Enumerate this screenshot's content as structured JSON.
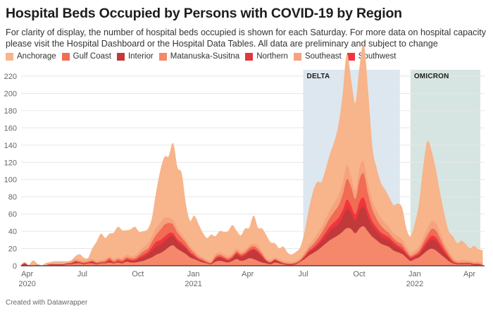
{
  "title": "Hospital Beds Occupied by Persons with COVID-19 by Region",
  "description": "For clarity of display, the number of hospital beds occupied is shown for each Saturday. For more data on hospital capacity please visit the Hospital Dashboard or the Hospital Data Tables. All data are preliminary and subject to change",
  "footer": "Created with Datawrapper",
  "chart_data": {
    "type": "area",
    "stacked": true,
    "title": "Hospital Beds Occupied by Persons with COVID-19 by Region",
    "xlabel": "",
    "ylabel": "",
    "ylim": [
      0,
      230
    ],
    "yticks": [
      0,
      20,
      40,
      60,
      80,
      100,
      120,
      140,
      160,
      180,
      200,
      220
    ],
    "grid": true,
    "legend": "top-left",
    "x_start": "2020-03-21",
    "x_interval": "weekly (Saturday)",
    "xticks": [
      {
        "label": "Apr",
        "sub": "2020",
        "week": 1.6
      },
      {
        "label": "Jul",
        "sub": "",
        "week": 14.6
      },
      {
        "label": "Oct",
        "sub": "",
        "week": 27.7
      },
      {
        "label": "Jan",
        "sub": "2021",
        "week": 40.8
      },
      {
        "label": "Apr",
        "sub": "",
        "week": 53.6
      },
      {
        "label": "Jul",
        "sub": "",
        "week": 66.7
      },
      {
        "label": "Oct",
        "sub": "",
        "week": 79.9
      },
      {
        "label": "Jan",
        "sub": "2022",
        "week": 93.0
      },
      {
        "label": "Apr",
        "sub": "",
        "week": 105.9
      }
    ],
    "annotations": [
      {
        "label": "DELTA",
        "from_week": 66.7,
        "to_week": 89.5,
        "color": "#dde7ef"
      },
      {
        "label": "OMICRON",
        "from_week": 92.0,
        "to_week": 108.9,
        "color": "#d6e5e1"
      }
    ],
    "series": [
      {
        "name": "Matanuska-Susitna",
        "color": "#f5876a",
        "values": [
          0,
          1,
          0,
          0,
          1,
          0,
          1,
          1,
          1,
          1,
          1,
          2,
          2,
          3,
          3,
          2,
          3,
          3,
          2,
          3,
          3,
          4,
          3,
          4,
          3,
          5,
          4,
          4,
          5,
          6,
          8,
          10,
          13,
          15,
          18,
          22,
          24,
          20,
          17,
          14,
          10,
          8,
          6,
          4,
          3,
          2,
          5,
          6,
          5,
          4,
          6,
          8,
          6,
          7,
          9,
          8,
          6,
          4,
          3,
          2,
          4,
          3,
          2,
          1,
          1,
          2,
          5,
          8,
          12,
          15,
          18,
          22,
          26,
          30,
          33,
          36,
          40,
          44,
          43,
          38,
          44,
          46,
          40,
          34,
          30,
          26,
          24,
          22,
          18,
          16,
          14,
          10,
          6,
          8,
          10,
          14,
          18,
          20,
          18,
          14,
          10,
          6,
          3,
          2,
          2,
          2,
          2,
          1,
          1,
          1
        ]
      },
      {
        "name": "Interior",
        "color": "#c0393b",
        "values": [
          0,
          2,
          0,
          0,
          0,
          0,
          0,
          1,
          1,
          1,
          1,
          1,
          1,
          2,
          1,
          1,
          1,
          2,
          1,
          1,
          1,
          2,
          1,
          1,
          1,
          2,
          2,
          2,
          3,
          4,
          5,
          7,
          9,
          9,
          10,
          11,
          10,
          8,
          7,
          6,
          4,
          3,
          2,
          2,
          1,
          1,
          3,
          4,
          3,
          2,
          3,
          5,
          4,
          5,
          7,
          10,
          9,
          6,
          3,
          2,
          3,
          2,
          1,
          1,
          1,
          1,
          1,
          2,
          3,
          4,
          5,
          6,
          8,
          10,
          11,
          12,
          16,
          22,
          18,
          14,
          20,
          22,
          16,
          12,
          10,
          8,
          7,
          7,
          6,
          5,
          4,
          3,
          2,
          2,
          3,
          5,
          8,
          10,
          10,
          8,
          5,
          3,
          1,
          1,
          1,
          1,
          1,
          1,
          1,
          0
        ]
      },
      {
        "name": "Northern",
        "color": "#e0383e",
        "values": [
          0,
          0,
          0,
          0,
          0,
          0,
          0,
          0,
          0,
          0,
          0,
          0,
          0,
          0,
          0,
          0,
          0,
          0,
          0,
          0,
          0,
          0,
          0,
          0,
          0,
          0,
          0,
          0,
          1,
          1,
          1,
          2,
          2,
          2,
          2,
          2,
          2,
          1,
          1,
          1,
          1,
          0,
          0,
          0,
          0,
          0,
          0,
          0,
          0,
          0,
          0,
          1,
          1,
          1,
          1,
          1,
          1,
          1,
          0,
          0,
          0,
          0,
          0,
          0,
          0,
          0,
          0,
          0,
          1,
          1,
          1,
          2,
          2,
          3,
          3,
          3,
          3,
          4,
          3,
          3,
          4,
          4,
          3,
          2,
          2,
          2,
          2,
          2,
          2,
          1,
          1,
          1,
          1,
          1,
          1,
          2,
          2,
          2,
          2,
          2,
          1,
          1,
          0,
          0,
          0,
          0,
          0,
          0,
          0,
          0
        ]
      },
      {
        "name": "Southwest",
        "color": "#f5333e",
        "values": [
          0,
          0,
          0,
          0,
          0,
          0,
          0,
          0,
          0,
          0,
          0,
          0,
          0,
          0,
          0,
          0,
          0,
          0,
          0,
          0,
          0,
          1,
          0,
          1,
          1,
          1,
          1,
          1,
          1,
          2,
          2,
          3,
          4,
          4,
          4,
          3,
          2,
          2,
          2,
          1,
          1,
          1,
          0,
          0,
          0,
          0,
          1,
          1,
          1,
          1,
          1,
          1,
          1,
          1,
          1,
          1,
          1,
          1,
          0,
          0,
          0,
          0,
          0,
          0,
          0,
          0,
          0,
          1,
          1,
          1,
          2,
          2,
          3,
          3,
          4,
          5,
          6,
          7,
          6,
          5,
          7,
          7,
          5,
          4,
          3,
          3,
          3,
          2,
          2,
          2,
          2,
          1,
          1,
          1,
          1,
          2,
          2,
          3,
          3,
          2,
          2,
          1,
          1,
          0,
          0,
          0,
          0,
          0,
          0,
          0
        ]
      },
      {
        "name": "Gulf Coast",
        "color": "#f26b53",
        "values": [
          0,
          0,
          0,
          0,
          0,
          0,
          0,
          0,
          0,
          0,
          0,
          0,
          1,
          1,
          1,
          1,
          1,
          1,
          1,
          1,
          2,
          2,
          2,
          2,
          2,
          2,
          2,
          2,
          3,
          4,
          4,
          6,
          8,
          12,
          14,
          12,
          10,
          8,
          6,
          5,
          4,
          3,
          2,
          2,
          1,
          1,
          2,
          2,
          2,
          2,
          2,
          2,
          2,
          2,
          3,
          3,
          3,
          2,
          1,
          1,
          1,
          1,
          1,
          1,
          1,
          1,
          1,
          2,
          3,
          4,
          5,
          6,
          8,
          10,
          12,
          14,
          18,
          24,
          22,
          18,
          26,
          28,
          20,
          14,
          10,
          8,
          6,
          5,
          4,
          4,
          4,
          3,
          2,
          2,
          3,
          4,
          6,
          8,
          8,
          6,
          4,
          3,
          2,
          1,
          1,
          1,
          1,
          1,
          1,
          1
        ]
      },
      {
        "name": "Southeast",
        "color": "#f5a37e",
        "values": [
          0,
          1,
          0,
          1,
          1,
          0,
          0,
          1,
          1,
          1,
          1,
          1,
          2,
          2,
          2,
          2,
          2,
          2,
          2,
          2,
          2,
          2,
          2,
          2,
          2,
          3,
          3,
          3,
          4,
          5,
          6,
          6,
          8,
          8,
          8,
          6,
          6,
          5,
          4,
          4,
          3,
          3,
          3,
          2,
          2,
          2,
          3,
          3,
          3,
          3,
          3,
          3,
          3,
          3,
          3,
          3,
          4,
          3,
          2,
          2,
          2,
          2,
          2,
          2,
          2,
          2,
          2,
          3,
          4,
          5,
          6,
          7,
          8,
          9,
          10,
          12,
          14,
          16,
          12,
          10,
          14,
          14,
          12,
          10,
          10,
          9,
          8,
          7,
          6,
          6,
          6,
          5,
          4,
          4,
          5,
          6,
          8,
          9,
          9,
          7,
          5,
          4,
          3,
          2,
          3,
          3,
          2,
          2,
          2,
          2
        ]
      },
      {
        "name": "Anchorage",
        "color": "#f8b48a",
        "values": [
          0,
          0,
          1,
          5,
          0,
          0,
          2,
          1,
          2,
          2,
          2,
          1,
          0,
          3,
          6,
          3,
          2,
          12,
          22,
          30,
          24,
          26,
          30,
          35,
          32,
          28,
          30,
          33,
          22,
          18,
          16,
          20,
          40,
          60,
          70,
          71,
          88,
          70,
          70,
          40,
          29,
          40,
          35,
          28,
          25,
          30,
          20,
          24,
          25,
          28,
          32,
          20,
          18,
          24,
          20,
          32,
          20,
          26,
          26,
          20,
          16,
          12,
          16,
          10,
          8,
          10,
          12,
          22,
          40,
          55,
          60,
          52,
          56,
          64,
          70,
          80,
          100,
          128,
          110,
          100,
          115,
          135,
          105,
          60,
          48,
          40,
          38,
          34,
          32,
          38,
          36,
          20,
          18,
          30,
          48,
          80,
          100,
          80,
          60,
          44,
          32,
          22,
          24,
          20,
          22,
          18,
          14,
          18,
          14,
          14
        ]
      }
    ]
  },
  "legend": [
    {
      "name": "Anchorage",
      "color": "#f8b48a"
    },
    {
      "name": "Gulf Coast",
      "color": "#f26b53"
    },
    {
      "name": "Interior",
      "color": "#c0393b"
    },
    {
      "name": "Matanuska-Susitna",
      "color": "#f5876a"
    },
    {
      "name": "Northern",
      "color": "#e0383e"
    },
    {
      "name": "Southeast",
      "color": "#f5a37e"
    },
    {
      "name": "Southwest",
      "color": "#f5333e"
    }
  ]
}
